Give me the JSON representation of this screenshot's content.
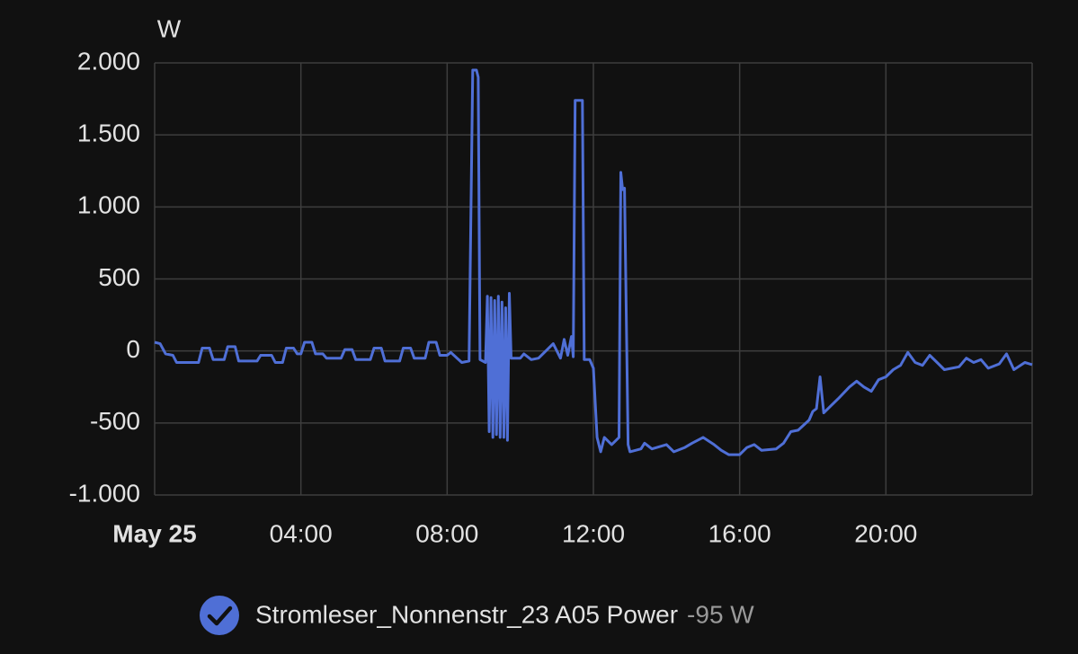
{
  "chart_data": {
    "type": "line",
    "y_label": "W",
    "x": [
      0,
      0.15,
      0.3,
      0.5,
      0.6,
      1.2,
      1.3,
      1.5,
      1.6,
      1.9,
      2.0,
      2.2,
      2.3,
      2.8,
      2.9,
      3.2,
      3.3,
      3.5,
      3.6,
      3.8,
      3.9,
      4.0,
      4.1,
      4.3,
      4.4,
      4.6,
      4.7,
      5.1,
      5.2,
      5.4,
      5.5,
      5.9,
      6.0,
      6.2,
      6.3,
      6.7,
      6.8,
      7.0,
      7.1,
      7.4,
      7.5,
      7.7,
      7.8,
      8.0,
      8.1,
      8.4,
      8.6,
      8.7,
      8.8,
      8.85,
      8.9,
      9.05,
      9.1,
      9.15,
      9.2,
      9.25,
      9.3,
      9.35,
      9.4,
      9.45,
      9.5,
      9.55,
      9.6,
      9.65,
      9.7,
      9.75,
      10.0,
      10.1,
      10.3,
      10.5,
      10.7,
      10.9,
      11.1,
      11.2,
      11.3,
      11.4,
      11.45,
      11.5,
      11.7,
      11.75,
      11.9,
      12.0,
      12.1,
      12.2,
      12.3,
      12.5,
      12.7,
      12.75,
      12.8,
      12.85,
      12.95,
      13.0,
      13.3,
      13.4,
      13.6,
      14.0,
      14.2,
      14.5,
      14.7,
      15.0,
      15.3,
      15.5,
      15.7,
      16.0,
      16.2,
      16.4,
      16.6,
      17.0,
      17.2,
      17.4,
      17.6,
      17.9,
      18.0,
      18.1,
      18.2,
      18.3,
      18.5,
      18.7,
      19.0,
      19.2,
      19.4,
      19.6,
      19.8,
      20.0,
      20.2,
      20.4,
      20.6,
      20.8,
      21.0,
      21.2,
      21.4,
      21.6,
      22.0,
      22.2,
      22.4,
      22.6,
      22.8,
      23.1,
      23.3,
      23.5,
      23.8,
      24.0
    ],
    "series": [
      {
        "name": "Stromleser_Nonnenstr_23 A05 Power",
        "color": "#4f6fd6",
        "values": [
          60,
          50,
          -20,
          -30,
          -80,
          -80,
          20,
          20,
          -60,
          -60,
          30,
          30,
          -70,
          -70,
          -30,
          -30,
          -80,
          -80,
          20,
          20,
          -20,
          -20,
          60,
          60,
          -20,
          -20,
          -50,
          -50,
          10,
          10,
          -60,
          -60,
          20,
          20,
          -70,
          -70,
          20,
          20,
          -50,
          -50,
          60,
          60,
          -30,
          -30,
          -10,
          -80,
          -70,
          1950,
          1950,
          1900,
          -60,
          -80,
          380,
          -560,
          370,
          -600,
          350,
          -580,
          380,
          -600,
          340,
          -600,
          300,
          -620,
          400,
          -50,
          -50,
          -20,
          -60,
          -50,
          0,
          50,
          -50,
          80,
          -30,
          100,
          -40,
          1740,
          1740,
          -60,
          -60,
          -120,
          -600,
          -700,
          -600,
          -650,
          -600,
          1240,
          1120,
          1130,
          -650,
          -700,
          -680,
          -640,
          -680,
          -650,
          -700,
          -670,
          -640,
          -600,
          -650,
          -690,
          -720,
          -720,
          -670,
          -650,
          -690,
          -680,
          -640,
          -560,
          -550,
          -480,
          -420,
          -400,
          -180,
          -430,
          -380,
          -330,
          -250,
          -210,
          -250,
          -280,
          -200,
          -180,
          -130,
          -100,
          -10,
          -80,
          -100,
          -30,
          -80,
          -130,
          -110,
          -50,
          -80,
          -60,
          -120,
          -90,
          -20,
          -130,
          -80,
          -95
        ]
      }
    ],
    "legend_value": "-95 W",
    "xlim": [
      0,
      24
    ],
    "xticks": [
      {
        "value": 0,
        "label": "May 25"
      },
      {
        "value": 4,
        "label": "04:00"
      },
      {
        "value": 8,
        "label": "08:00"
      },
      {
        "value": 12,
        "label": "12:00"
      },
      {
        "value": 16,
        "label": "16:00"
      },
      {
        "value": 20,
        "label": "20:00"
      }
    ],
    "ylim": [
      -1000,
      2000
    ],
    "yticks": [
      {
        "value": 2000,
        "label": "2.000"
      },
      {
        "value": 1500,
        "label": "1.500"
      },
      {
        "value": 1000,
        "label": "1.000"
      },
      500,
      0,
      -500,
      {
        "value": -1000,
        "label": "-1.000"
      }
    ],
    "grid": true
  }
}
